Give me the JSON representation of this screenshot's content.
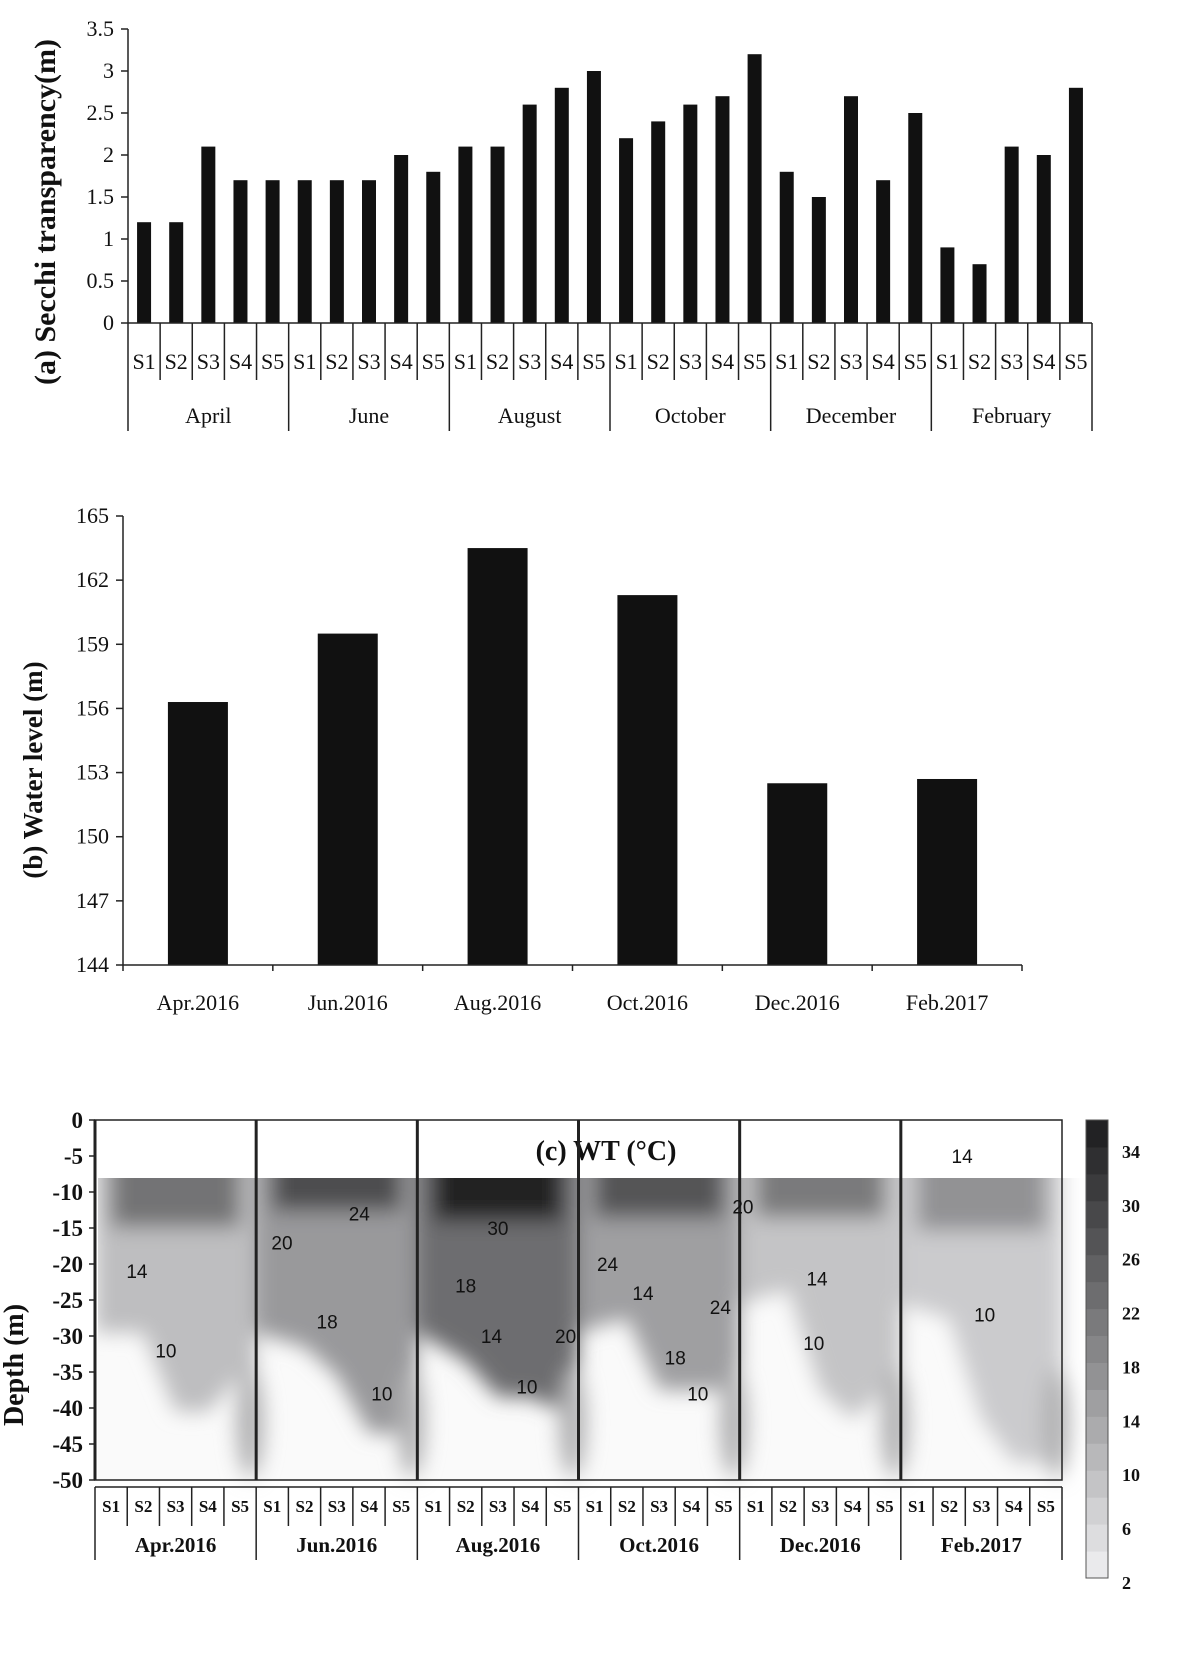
{
  "chart_data": [
    {
      "type": "bar",
      "ylabel": "(a) Secchi transparency(m)",
      "ylim": [
        0,
        3.5
      ],
      "yticks": [
        "0",
        "0.5",
        "1",
        "1.5",
        "2",
        "2.5",
        "3",
        "3.5"
      ],
      "groups": [
        "April",
        "June",
        "August",
        "October",
        "December",
        "February"
      ],
      "stations": [
        "S1",
        "S2",
        "S3",
        "S4",
        "S5"
      ],
      "values": [
        [
          1.2,
          1.2,
          2.1,
          1.7,
          1.7
        ],
        [
          1.7,
          1.7,
          1.7,
          2.0,
          1.8
        ],
        [
          2.1,
          2.1,
          2.6,
          2.8,
          3.0
        ],
        [
          2.2,
          2.4,
          2.6,
          2.7,
          3.2
        ],
        [
          1.8,
          1.5,
          2.7,
          1.7,
          2.5
        ],
        [
          0.9,
          0.7,
          2.1,
          2.0,
          2.8
        ]
      ],
      "grid": false,
      "color": "#111111"
    },
    {
      "type": "bar",
      "ylabel": "(b) Water level (m)",
      "ylim": [
        144,
        165
      ],
      "yticks": [
        "144",
        "147",
        "150",
        "153",
        "156",
        "159",
        "162",
        "165"
      ],
      "categories": [
        "Apr.2016",
        "Jun.2016",
        "Aug.2016",
        "Oct.2016",
        "Dec.2016",
        "Feb.2017"
      ],
      "values": [
        156.3,
        159.5,
        163.5,
        161.3,
        152.5,
        152.7
      ],
      "grid": false,
      "color": "#111111"
    },
    {
      "type": "heatmap",
      "title": "(c) WT (°C)",
      "ylabel": "Depth (m)",
      "ylim": [
        -50,
        0
      ],
      "yticks": [
        "0",
        "-5",
        "-10",
        "-15",
        "-20",
        "-25",
        "-30",
        "-35",
        "-40",
        "-45",
        "-50"
      ],
      "groups": [
        "Apr.2016",
        "Jun.2016",
        "Aug.2016",
        "Oct.2016",
        "Dec.2016",
        "Feb.2017"
      ],
      "stations": [
        "S1",
        "S2",
        "S3",
        "S4",
        "S5"
      ],
      "colorbar_ticks": [
        "2",
        "6",
        "10",
        "14",
        "18",
        "22",
        "26",
        "30",
        "34"
      ],
      "colorbar_range": [
        2,
        36
      ],
      "surface_temperature": [
        19,
        25,
        32,
        24,
        18,
        14
      ],
      "mixed_layer_bottom_m": [
        -32,
        -31,
        -32,
        -30,
        -32,
        -42
      ],
      "contour_labels": [
        {
          "text": "14",
          "group": 0,
          "station": 0.8,
          "depth": -21
        },
        {
          "text": "10",
          "group": 0,
          "station": 1.7,
          "depth": -32
        },
        {
          "text": "20",
          "group": 1,
          "station": 0.3,
          "depth": -17
        },
        {
          "text": "24",
          "group": 1,
          "station": 2.7,
          "depth": -13
        },
        {
          "text": "18",
          "group": 1,
          "station": 1.7,
          "depth": -28
        },
        {
          "text": "10",
          "group": 1,
          "station": 3.4,
          "depth": -38
        },
        {
          "text": "30",
          "group": 2,
          "station": 2.0,
          "depth": -15
        },
        {
          "text": "18",
          "group": 2,
          "station": 1.0,
          "depth": -23
        },
        {
          "text": "14",
          "group": 2,
          "station": 1.8,
          "depth": -30
        },
        {
          "text": "10",
          "group": 2,
          "station": 2.9,
          "depth": -37
        },
        {
          "text": "20",
          "group": 2,
          "station": 4.1,
          "depth": -30
        },
        {
          "text": "24",
          "group": 3,
          "station": 0.4,
          "depth": -20
        },
        {
          "text": "14",
          "group": 3,
          "station": 1.5,
          "depth": -24
        },
        {
          "text": "18",
          "group": 3,
          "station": 2.5,
          "depth": -33
        },
        {
          "text": "10",
          "group": 3,
          "station": 3.2,
          "depth": -38
        },
        {
          "text": "24",
          "group": 3,
          "station": 3.9,
          "depth": -26
        },
        {
          "text": "20",
          "group": 3,
          "station": 4.6,
          "depth": -12
        },
        {
          "text": "14",
          "group": 4,
          "station": 1.9,
          "depth": -22
        },
        {
          "text": "10",
          "group": 4,
          "station": 1.8,
          "depth": -31
        },
        {
          "text": "14",
          "group": 5,
          "station": 1.4,
          "depth": -5
        },
        {
          "text": "10",
          "group": 5,
          "station": 2.1,
          "depth": -27
        }
      ]
    }
  ]
}
